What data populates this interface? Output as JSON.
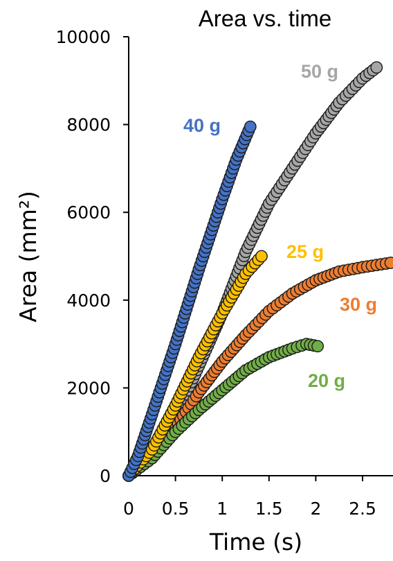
{
  "chart_data": {
    "type": "scatter",
    "title": "Area vs. time",
    "xlabel": "Time (s)",
    "ylabel": "Area (mm²)",
    "xlim": [
      -0.05,
      2.8
    ],
    "ylim": [
      0,
      10000
    ],
    "xticks": [
      "0",
      "0.5",
      "1",
      "1.5",
      "2",
      "2.5"
    ],
    "yticks": [
      "0",
      "2000",
      "4000",
      "6000",
      "8000",
      "10000"
    ],
    "grid": false,
    "series": [
      {
        "name": "50 g",
        "color": "#a6a6a6",
        "x_end": 2.65,
        "points": [
          [
            0,
            0
          ],
          [
            0.25,
            500
          ],
          [
            0.5,
            1300
          ],
          [
            0.75,
            2500
          ],
          [
            1.0,
            3700
          ],
          [
            1.25,
            5100
          ],
          [
            1.5,
            6200
          ],
          [
            1.75,
            7000
          ],
          [
            2.0,
            7800
          ],
          [
            2.25,
            8500
          ],
          [
            2.5,
            9050
          ],
          [
            2.65,
            9300
          ]
        ]
      },
      {
        "name": "30 g",
        "color": "#ed7d31",
        "x_end": 2.8,
        "points": [
          [
            0,
            0
          ],
          [
            0.25,
            400
          ],
          [
            0.5,
            1100
          ],
          [
            0.75,
            1900
          ],
          [
            1.0,
            2600
          ],
          [
            1.25,
            3200
          ],
          [
            1.5,
            3750
          ],
          [
            1.75,
            4150
          ],
          [
            2.0,
            4450
          ],
          [
            2.25,
            4650
          ],
          [
            2.5,
            4750
          ],
          [
            2.8,
            4850
          ]
        ]
      },
      {
        "name": "20 g",
        "color": "#70ad47",
        "x_end": 2.02,
        "points": [
          [
            0,
            0
          ],
          [
            0.25,
            400
          ],
          [
            0.5,
            1000
          ],
          [
            0.75,
            1500
          ],
          [
            1.0,
            1950
          ],
          [
            1.25,
            2400
          ],
          [
            1.5,
            2700
          ],
          [
            1.75,
            2900
          ],
          [
            1.9,
            3000
          ],
          [
            2.02,
            2950
          ]
        ]
      },
      {
        "name": "25 g",
        "color": "#ffc000",
        "x_end": 1.42,
        "points": [
          [
            0,
            0
          ],
          [
            0.25,
            600
          ],
          [
            0.5,
            1600
          ],
          [
            0.75,
            2700
          ],
          [
            1.0,
            3700
          ],
          [
            1.25,
            4600
          ],
          [
            1.42,
            5000
          ]
        ]
      },
      {
        "name": "40 g",
        "color": "#4472c4",
        "x_end": 1.3,
        "points": [
          [
            0,
            0
          ],
          [
            0.1,
            450
          ],
          [
            0.25,
            1400
          ],
          [
            0.5,
            3000
          ],
          [
            0.75,
            4700
          ],
          [
            1.0,
            6300
          ],
          [
            1.15,
            7200
          ],
          [
            1.3,
            7950
          ]
        ]
      }
    ]
  }
}
